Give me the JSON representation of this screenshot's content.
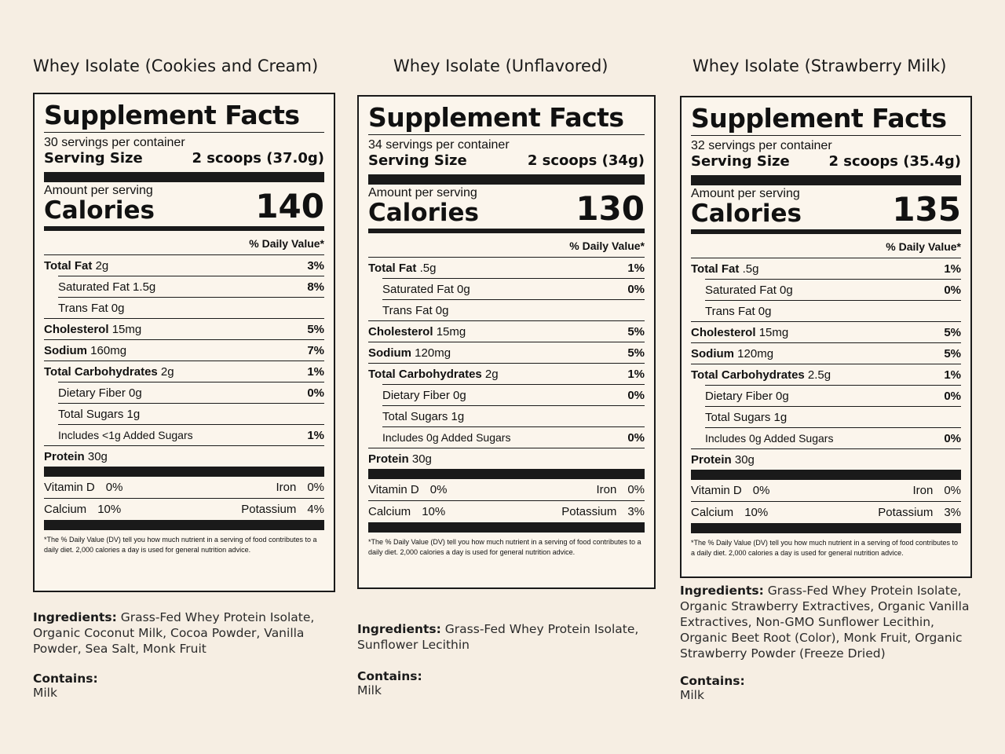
{
  "common": {
    "panel_title": "Supplement Facts",
    "serving_size_label": "Serving Size",
    "amount_label": "Amount per serving",
    "calories_label": "Calories",
    "dv_header": "% Daily Value*",
    "footnote": "*The % Daily Value (DV) tell you how much nutrient in a serving of food contributes to a daily diet. 2,000 calories a day is used for general nutrition advice.",
    "ingredients_label": "Ingredients:",
    "contains_label": "Contains:"
  },
  "products": [
    {
      "title": "Whey Isolate (Cookies and Cream)",
      "servings": "30 servings per container",
      "serving_size": "2 scoops (37.0g)",
      "calories": "140",
      "nutrients": [
        {
          "name": "Total Fat",
          "amount": "2g",
          "dv": "3%"
        },
        {
          "name": "Saturated Fat 1.5g",
          "amount": "",
          "dv": "8%"
        },
        {
          "name": "Trans Fat 0g",
          "amount": "",
          "dv": ""
        },
        {
          "name": "Cholesterol",
          "amount": "15mg",
          "dv": "5%"
        },
        {
          "name": "Sodium",
          "amount": "160mg",
          "dv": "7%"
        },
        {
          "name": "Total Carbohydrates",
          "amount": "2g",
          "dv": "1%"
        },
        {
          "name": "Dietary Fiber 0g",
          "amount": "",
          "dv": "0%"
        },
        {
          "name": "Total Sugars 1g",
          "amount": "",
          "dv": ""
        },
        {
          "name": "Includes <1g Added Sugars",
          "amount": "",
          "dv": "1%"
        },
        {
          "name": "Protein",
          "amount": "30g",
          "dv": ""
        }
      ],
      "vitamins": [
        {
          "a_name": "Vitamin D",
          "a_val": "0%",
          "b_name": "Iron",
          "b_val": "0%"
        },
        {
          "a_name": "Calcium",
          "a_val": "10%",
          "b_name": "Potassium",
          "b_val": "4%"
        }
      ],
      "ingredients": "Grass-Fed Whey Protein Isolate, Organic Coconut Milk, Cocoa Powder, Vanilla Powder, Sea Salt, Monk Fruit",
      "contains": "Milk"
    },
    {
      "title": "Whey Isolate (Unflavored)",
      "servings": "34 servings per container",
      "serving_size": "2 scoops (34g)",
      "calories": "130",
      "nutrients": [
        {
          "name": "Total Fat",
          "amount": ".5g",
          "dv": "1%"
        },
        {
          "name": "Saturated Fat 0g",
          "amount": "",
          "dv": "0%"
        },
        {
          "name": "Trans Fat 0g",
          "amount": "",
          "dv": ""
        },
        {
          "name": "Cholesterol",
          "amount": "15mg",
          "dv": "5%"
        },
        {
          "name": "Sodium",
          "amount": "120mg",
          "dv": "5%"
        },
        {
          "name": "Total Carbohydrates",
          "amount": "2g",
          "dv": "1%"
        },
        {
          "name": "Dietary Fiber 0g",
          "amount": "",
          "dv": "0%"
        },
        {
          "name": "Total Sugars 1g",
          "amount": "",
          "dv": ""
        },
        {
          "name": "Includes 0g Added Sugars",
          "amount": "",
          "dv": "0%"
        },
        {
          "name": "Protein",
          "amount": "30g",
          "dv": ""
        }
      ],
      "vitamins": [
        {
          "a_name": "Vitamin D",
          "a_val": "0%",
          "b_name": "Iron",
          "b_val": "0%"
        },
        {
          "a_name": "Calcium",
          "a_val": "10%",
          "b_name": "Potassium",
          "b_val": "3%"
        }
      ],
      "ingredients": "Grass-Fed Whey Protein Isolate, Sunflower Lecithin",
      "contains": "Milk"
    },
    {
      "title": "Whey Isolate (Strawberry Milk)",
      "servings": "32 servings per container",
      "serving_size": "2 scoops (35.4g)",
      "calories": "135",
      "nutrients": [
        {
          "name": "Total Fat",
          "amount": ".5g",
          "dv": "1%"
        },
        {
          "name": "Saturated Fat 0g",
          "amount": "",
          "dv": "0%"
        },
        {
          "name": "Trans Fat 0g",
          "amount": "",
          "dv": ""
        },
        {
          "name": "Cholesterol",
          "amount": "15mg",
          "dv": "5%"
        },
        {
          "name": "Sodium",
          "amount": "120mg",
          "dv": "5%"
        },
        {
          "name": "Total Carbohydrates",
          "amount": "2.5g",
          "dv": "1%"
        },
        {
          "name": "Dietary Fiber 0g",
          "amount": "",
          "dv": "0%"
        },
        {
          "name": "Total Sugars 1g",
          "amount": "",
          "dv": ""
        },
        {
          "name": "Includes 0g Added Sugars",
          "amount": "",
          "dv": "0%"
        },
        {
          "name": "Protein",
          "amount": "30g",
          "dv": ""
        }
      ],
      "vitamins": [
        {
          "a_name": "Vitamin D",
          "a_val": "0%",
          "b_name": "Iron",
          "b_val": "0%"
        },
        {
          "a_name": "Calcium",
          "a_val": "10%",
          "b_name": "Potassium",
          "b_val": "3%"
        }
      ],
      "ingredients": "Grass-Fed Whey Protein Isolate, Organic Strawberry Extractives, Organic Vanilla Extractives, Non-GMO Sunflower Lecithin, Organic Beet Root (Color), Monk Fruit, Organic Strawberry Powder (Freeze Dried)",
      "contains": "Milk"
    }
  ]
}
